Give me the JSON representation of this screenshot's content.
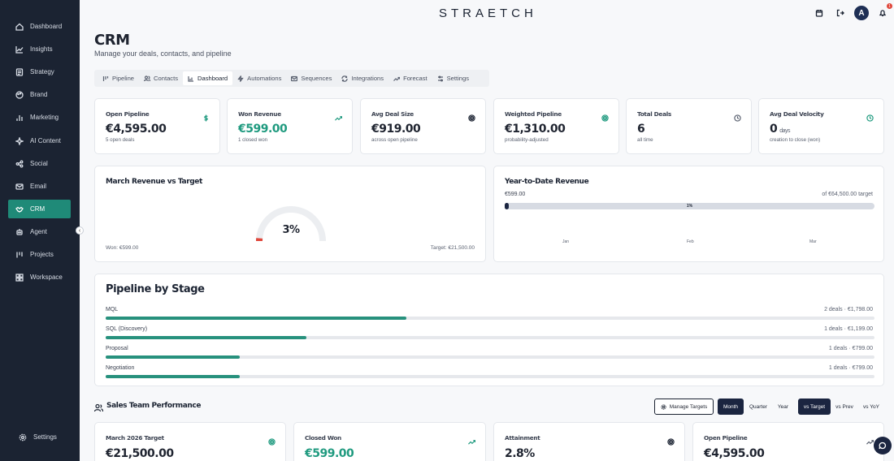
{
  "app": {
    "logo": "STRAETCH"
  },
  "sidebar": {
    "items": [
      {
        "label": "Dashboard",
        "icon": "home-icon"
      },
      {
        "label": "Insights",
        "icon": "chart-line-icon"
      },
      {
        "label": "Strategy",
        "icon": "document-icon"
      },
      {
        "label": "Brand",
        "icon": "palette-icon"
      },
      {
        "label": "Marketing",
        "icon": "bar-chart-icon"
      },
      {
        "label": "AI Content",
        "icon": "sparkle-icon"
      },
      {
        "label": "Social",
        "icon": "share-icon"
      },
      {
        "label": "Email",
        "icon": "mail-icon"
      },
      {
        "label": "CRM",
        "icon": "handshake-icon",
        "active": true
      },
      {
        "label": "Agent",
        "icon": "robot-icon"
      },
      {
        "label": "Projects",
        "icon": "kanban-icon"
      },
      {
        "label": "Workspace",
        "icon": "grid-icon"
      }
    ],
    "settings_label": "Settings"
  },
  "header": {
    "avatar_initial": "A",
    "notification_count": "1"
  },
  "page": {
    "title": "CRM",
    "subtitle": "Manage your deals, contacts, and pipeline"
  },
  "tabs": [
    {
      "label": "Pipeline",
      "icon": "pipeline-icon"
    },
    {
      "label": "Contacts",
      "icon": "users-icon"
    },
    {
      "label": "Dashboard",
      "icon": "bar-chart-icon",
      "active": true
    },
    {
      "label": "Automations",
      "icon": "zap-icon"
    },
    {
      "label": "Sequences",
      "icon": "mail-icon"
    },
    {
      "label": "Integrations",
      "icon": "refresh-icon"
    },
    {
      "label": "Forecast",
      "icon": "trend-up-icon"
    },
    {
      "label": "Settings",
      "icon": "sliders-icon"
    }
  ],
  "kpis": [
    {
      "label": "Open Pipeline",
      "value": "€4,595.00",
      "sub": "5 open deals",
      "icon": "dollar-icon",
      "green": false
    },
    {
      "label": "Won Revenue",
      "value": "€599.00",
      "sub": "1 closed won",
      "icon": "trend-up-icon",
      "green": true
    },
    {
      "label": "Avg Deal Size",
      "value": "€919.00",
      "sub": "across open pipeline",
      "icon": "target-icon",
      "green": false
    },
    {
      "label": "Weighted Pipeline",
      "value": "€1,310.00",
      "sub": "probability-adjusted",
      "icon": "target-icon",
      "green": false
    },
    {
      "label": "Total Deals",
      "value": "6",
      "sub": "all time",
      "icon": "clock-icon",
      "green": false
    },
    {
      "label": "Avg Deal Velocity",
      "value": "0",
      "unit": "days",
      "sub": "creation to close (won)",
      "icon": "clock-icon",
      "green": false
    }
  ],
  "monthly_target": {
    "title": "March Revenue vs Target",
    "percent_label": "3%",
    "percent": 2.8,
    "won_label": "Won: €599.00",
    "target_label": "Target: €21,500.00"
  },
  "ytd": {
    "title": "Year-to-Date Revenue",
    "current": "€599.00",
    "target": "of €64,500.00 target",
    "percent_label": "1%",
    "percent": 0.93,
    "months": [
      "Jan",
      "Feb",
      "Mar"
    ]
  },
  "pipeline": {
    "title": "Pipeline by Stage",
    "stages": [
      {
        "name": "MQL",
        "summary": "2 deals · €1,798.00",
        "share": 0.391
      },
      {
        "name": "SQL (Discovery)",
        "summary": "1 deals · €1,199.00",
        "share": 0.261
      },
      {
        "name": "Proposal",
        "summary": "1 deals · €799.00",
        "share": 0.174
      },
      {
        "name": "Negotiation",
        "summary": "1 deals · €799.00",
        "share": 0.174
      }
    ]
  },
  "team": {
    "title": "Sales Team Performance",
    "manage_label": "Manage Targets",
    "periods": [
      "Month",
      "Quarter",
      "Year"
    ],
    "comparisons": [
      "vs Target",
      "vs Prev",
      "vs YoY"
    ],
    "cards": [
      {
        "label": "March 2026 Target",
        "value": "€21,500.00",
        "icon": "target-icon",
        "green": false
      },
      {
        "label": "Closed Won",
        "value": "€599.00",
        "icon": "trend-up-icon",
        "green": true
      },
      {
        "label": "Attainment",
        "value": "2.8%",
        "icon": "target-icon",
        "green": false
      },
      {
        "label": "Open Pipeline",
        "value": "€4,595.00",
        "icon": "trend-up-icon",
        "green": false
      }
    ]
  },
  "colors": {
    "accent": "#1f8a78",
    "sidebar": "#1b2332",
    "danger": "#e0473b",
    "dark_button": "#1b2540"
  }
}
